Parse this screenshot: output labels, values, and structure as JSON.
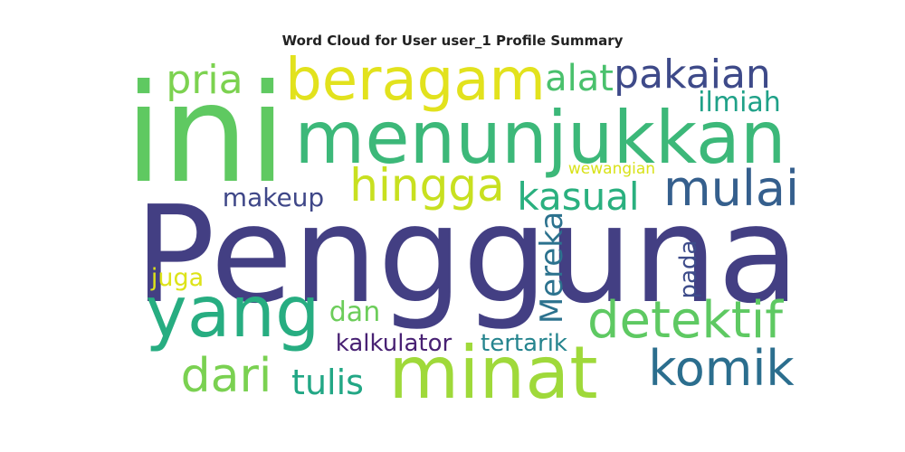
{
  "chart_data": {
    "type": "wordcloud",
    "title": "Word Cloud for User user_1 Profile Summary",
    "words": [
      {
        "text": "Pengguna",
        "color": "#433f83"
      },
      {
        "text": "ini",
        "color": "#5fc961"
      },
      {
        "text": "menunjukkan",
        "color": "#3cb879"
      },
      {
        "text": "minat",
        "color": "#9fd93a"
      },
      {
        "text": "yang",
        "color": "#27ad81"
      },
      {
        "text": "beragam",
        "color": "#e2e21d"
      },
      {
        "text": "detektif",
        "color": "#5ec962"
      },
      {
        "text": "komik",
        "color": "#2b6e8e"
      },
      {
        "text": "mulai",
        "color": "#355f8d"
      },
      {
        "text": "dari",
        "color": "#7ad151"
      },
      {
        "text": "pakaian",
        "color": "#3e4a89"
      },
      {
        "text": "hingga",
        "color": "#c8e020"
      },
      {
        "text": "kasual",
        "color": "#2ab07f"
      },
      {
        "text": "pria",
        "color": "#7cd250"
      },
      {
        "text": "alat",
        "color": "#4ac16d"
      },
      {
        "text": "tulis",
        "color": "#22a785"
      },
      {
        "text": "tertarik",
        "color": "#25848e"
      },
      {
        "text": "Mereka",
        "color": "#2c728e"
      },
      {
        "text": "kalkulator",
        "color": "#482173"
      },
      {
        "text": "makeup",
        "color": "#3f4788"
      },
      {
        "text": "ilmiah",
        "color": "#1fa188"
      },
      {
        "text": "pada",
        "color": "#3e4c8a"
      },
      {
        "text": "dan",
        "color": "#6ccd5a"
      },
      {
        "text": "juga",
        "color": "#dde318"
      },
      {
        "text": "wewangian",
        "color": "#d8e219"
      }
    ]
  }
}
